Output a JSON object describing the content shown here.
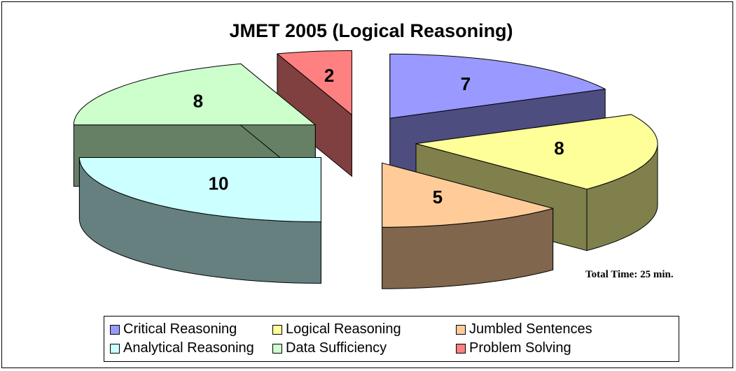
{
  "chart_data": {
    "type": "pie3d",
    "title": "JMET 2005 (Logical Reasoning)",
    "categories": [
      "Critical Reasoning",
      "Logical Reasoning",
      "Jumbled Sentences",
      "Analytical Reasoning",
      "Data Sufficiency",
      "Problem Solving"
    ],
    "values": [
      7,
      8,
      5,
      10,
      8,
      2
    ],
    "colors": [
      "#9999ff",
      "#ffff99",
      "#ffcc99",
      "#ccffff",
      "#ccffcc",
      "#ff8080"
    ],
    "annotation": "Total Time: 25 min.",
    "legend": "bottom"
  }
}
